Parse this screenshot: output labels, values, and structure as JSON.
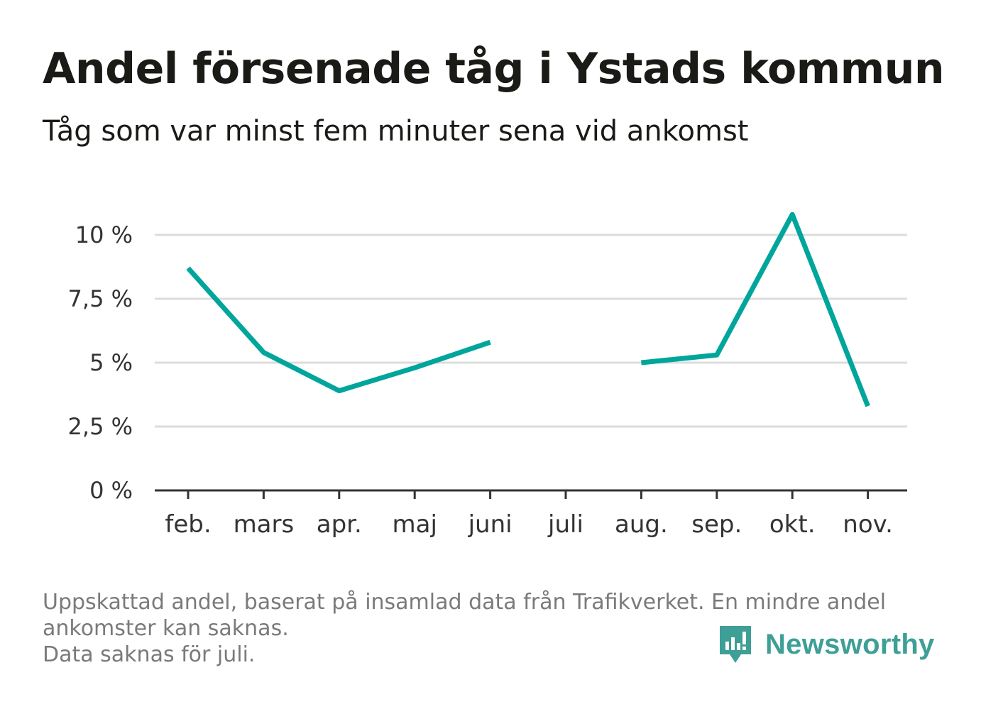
{
  "header": {
    "title": "Andel försenade tåg i Ystads kommun",
    "subtitle": "Tåg som var minst fem minuter sena vid ankomst"
  },
  "chart_data": {
    "type": "line",
    "title": "Andel försenade tåg i Ystads kommun",
    "subtitle": "Tåg som var minst fem minuter sena vid ankomst",
    "xlabel": "",
    "ylabel": "",
    "categories": [
      "feb.",
      "mars",
      "apr.",
      "maj",
      "juni",
      "juli",
      "aug.",
      "sep.",
      "okt.",
      "nov."
    ],
    "series": [
      {
        "values": [
          8.7,
          5.4,
          3.9,
          4.8,
          5.8,
          null,
          5.0,
          5.3,
          10.8,
          3.3
        ],
        "color": "#00a59b"
      }
    ],
    "ylim": [
      0,
      10
    ],
    "yticks": [
      0,
      2.5,
      5,
      7.5,
      10
    ],
    "ytick_labels": [
      "0 %",
      "2,5 %",
      "5 %",
      "7,5 %",
      "10 %"
    ],
    "grid": true,
    "legend": "none"
  },
  "footer": {
    "note_lines": [
      "Uppskattad andel, baserat på insamlad data från Trafikverket. En mindre andel",
      "ankomster kan saknas.",
      "Data saknas för juli."
    ],
    "brand": "Newsworthy",
    "brand_icon": "newsworthy-logo-icon",
    "brand_color": "#3d9f96"
  }
}
